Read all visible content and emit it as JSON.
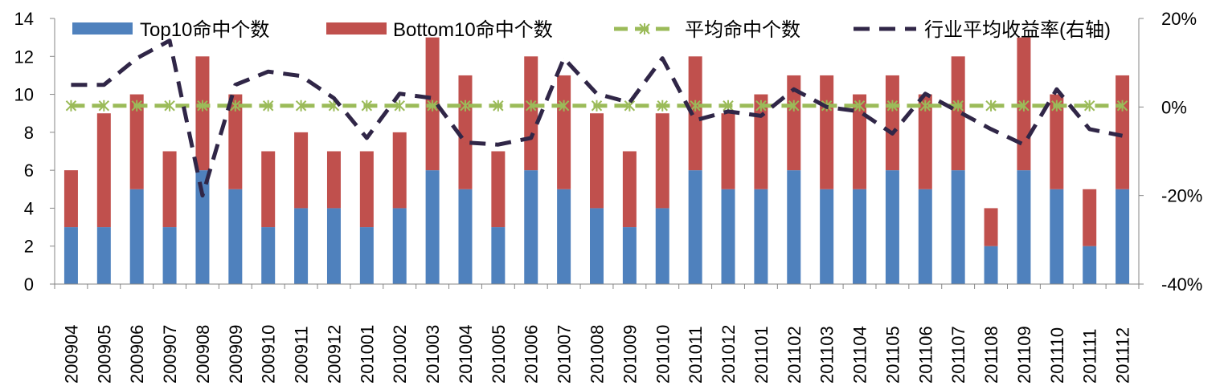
{
  "colors": {
    "top10": "#4F81BD",
    "bottom10": "#C0504D",
    "avg_hits": "#9BBB59",
    "industry_return": "#302647",
    "axis": "#868686"
  },
  "legend": {
    "top10": "Top10命中个数",
    "bottom10": "Bottom10命中个数",
    "avg_hits": "平均命中个数",
    "industry_return": "行业平均收益率(右轴)"
  },
  "chart_data": {
    "type": "bar",
    "stacked": true,
    "legend_position": "top",
    "grid": false,
    "categories": [
      "200904",
      "200905",
      "200906",
      "200907",
      "200908",
      "200909",
      "200910",
      "200911",
      "200912",
      "201001",
      "201002",
      "201003",
      "201004",
      "201005",
      "201006",
      "201007",
      "201008",
      "201009",
      "201010",
      "201011",
      "201012",
      "201101",
      "201102",
      "201103",
      "201104",
      "201105",
      "201106",
      "201107",
      "201108",
      "201109",
      "201110",
      "201111",
      "201112"
    ],
    "series": [
      {
        "name": "Top10命中个数",
        "type": "bar",
        "axis": "left",
        "values": [
          3,
          3,
          5,
          3,
          6,
          5,
          3,
          4,
          4,
          3,
          4,
          6,
          5,
          3,
          6,
          5,
          4,
          3,
          4,
          6,
          5,
          5,
          6,
          5,
          5,
          6,
          5,
          6,
          2,
          6,
          5,
          2,
          5
        ]
      },
      {
        "name": "Bottom10命中个数",
        "type": "bar",
        "axis": "left",
        "values": [
          3,
          6,
          5,
          4,
          6,
          5,
          4,
          4,
          3,
          4,
          4,
          7,
          6,
          4,
          6,
          6,
          5,
          4,
          5,
          6,
          4,
          5,
          5,
          6,
          5,
          5,
          5,
          6,
          2,
          7,
          5,
          3,
          6
        ]
      },
      {
        "name": "平均命中个数",
        "type": "line",
        "axis": "left",
        "style": "dashed-star",
        "values": [
          9.4,
          9.4,
          9.4,
          9.4,
          9.4,
          9.4,
          9.4,
          9.4,
          9.4,
          9.4,
          9.4,
          9.4,
          9.4,
          9.4,
          9.4,
          9.4,
          9.4,
          9.4,
          9.4,
          9.4,
          9.4,
          9.4,
          9.4,
          9.4,
          9.4,
          9.4,
          9.4,
          9.4,
          9.4,
          9.4,
          9.4,
          9.4,
          9.4
        ]
      },
      {
        "name": "行业平均收益率(右轴)",
        "type": "line",
        "axis": "right",
        "style": "dashed",
        "values": [
          5,
          5,
          11,
          15,
          -20,
          5,
          8,
          7,
          2,
          -7,
          3,
          2,
          -8,
          -8.5,
          -7,
          11,
          3,
          1,
          11,
          -3,
          -1,
          -2,
          4,
          0,
          -1,
          -6,
          3,
          -1,
          -5,
          -8.5,
          4,
          -5,
          -6.5
        ]
      }
    ],
    "y_left": {
      "min": 0,
      "max": 14,
      "step": 2,
      "ticks": [
        "0",
        "2",
        "4",
        "6",
        "8",
        "10",
        "12",
        "14"
      ]
    },
    "y_right": {
      "min": -40,
      "max": 20,
      "step": 20,
      "ticks": [
        "-40%",
        "-20%",
        "0%",
        "20%"
      ]
    }
  }
}
